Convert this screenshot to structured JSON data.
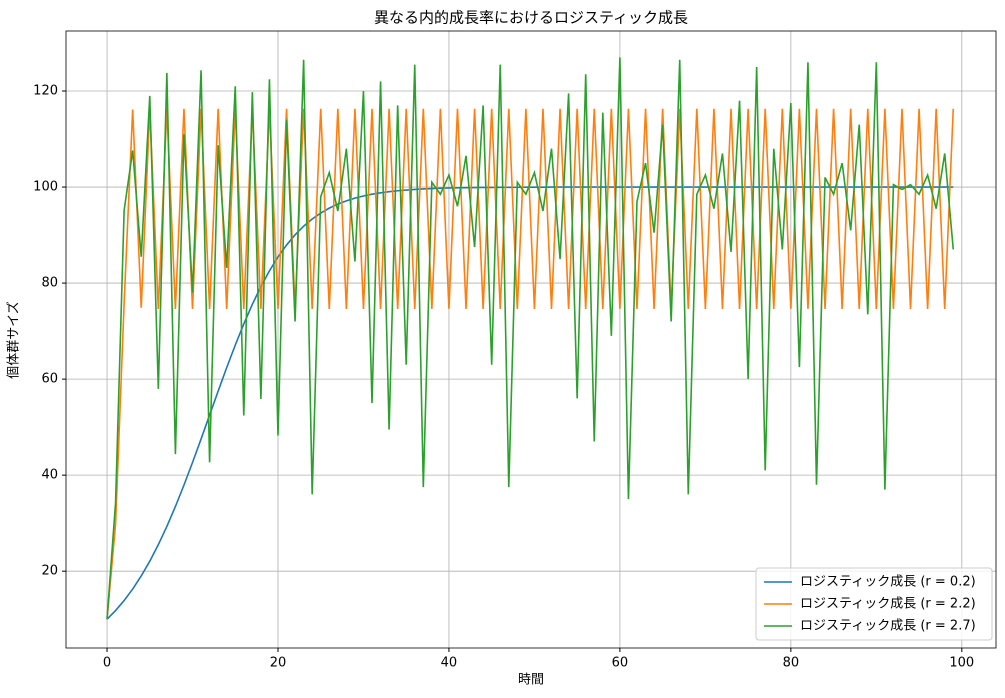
{
  "chart_data": {
    "type": "line",
    "title": "異なる内的成長率におけるロジスティック成長",
    "xlabel": "時間",
    "ylabel": "個体群サイズ",
    "x": [
      0,
      1,
      2,
      3,
      4,
      5,
      6,
      7,
      8,
      9,
      10,
      11,
      12,
      13,
      14,
      15,
      16,
      17,
      18,
      19,
      20,
      21,
      22,
      23,
      24,
      25,
      26,
      27,
      28,
      29,
      30,
      31,
      32,
      33,
      34,
      35,
      36,
      37,
      38,
      39,
      40,
      41,
      42,
      43,
      44,
      45,
      46,
      47,
      48,
      49,
      50,
      51,
      52,
      53,
      54,
      55,
      56,
      57,
      58,
      59,
      60,
      61,
      62,
      63,
      64,
      65,
      66,
      67,
      68,
      69,
      70,
      71,
      72,
      73,
      74,
      75,
      76,
      77,
      78,
      79,
      80,
      81,
      82,
      83,
      84,
      85,
      86,
      87,
      88,
      89,
      90,
      91,
      92,
      93,
      94,
      95,
      96,
      97,
      98,
      99
    ],
    "series": [
      {
        "name": "ロジスティック成長 (r = 0.2)",
        "color": "#1f77b4",
        "values": [
          10,
          11.8,
          13.88,
          16.27,
          19.0,
          22.08,
          25.52,
          29.32,
          33.47,
          37.92,
          42.63,
          47.52,
          52.51,
          57.5,
          62.39,
          67.08,
          71.5,
          75.58,
          79.27,
          82.55,
          85.44,
          87.92,
          90.05,
          91.84,
          93.34,
          94.58,
          95.61,
          96.45,
          97.13,
          97.69,
          98.14,
          98.51,
          98.8,
          99.04,
          99.23,
          99.38,
          99.5,
          99.6,
          99.68,
          99.75,
          99.8,
          99.84,
          99.87,
          99.89,
          99.91,
          99.93,
          99.94,
          99.95,
          99.96,
          99.97,
          99.98,
          99.98,
          99.99,
          99.99,
          99.99,
          99.99,
          100,
          100,
          100,
          100,
          100,
          100,
          100,
          100,
          100,
          100,
          100,
          100,
          100,
          100,
          100,
          100,
          100,
          100,
          100,
          100,
          100,
          100,
          100,
          100,
          100,
          100,
          100,
          100,
          100,
          100,
          100,
          100,
          100,
          100,
          100,
          100,
          100,
          100,
          100,
          100,
          100,
          100,
          100,
          100
        ]
      },
      {
        "name": "ロジスティック成長 (r = 2.2)",
        "color": "#ff7f0e",
        "values": [
          10,
          29.8,
          75.82,
          116.15,
          74.88,
          116.26,
          74.62,
          116.29,
          74.62,
          116.29,
          74.62,
          116.29,
          74.62,
          116.29,
          74.62,
          116.29,
          74.62,
          116.29,
          74.62,
          116.29,
          74.62,
          116.29,
          74.62,
          116.29,
          74.62,
          116.29,
          74.62,
          116.29,
          74.62,
          116.29,
          74.62,
          116.29,
          74.62,
          116.29,
          74.62,
          116.29,
          74.62,
          116.29,
          74.62,
          116.29,
          74.62,
          116.29,
          74.62,
          116.29,
          74.62,
          116.29,
          74.62,
          116.29,
          74.62,
          116.29,
          74.62,
          116.29,
          74.62,
          116.29,
          74.62,
          116.29,
          74.62,
          116.29,
          74.62,
          116.29,
          74.62,
          116.29,
          74.62,
          116.29,
          74.62,
          116.29,
          74.62,
          116.29,
          74.62,
          116.29,
          74.62,
          116.29,
          74.62,
          116.29,
          74.62,
          116.29,
          74.62,
          116.29,
          74.62,
          116.29,
          74.62,
          116.29,
          74.62,
          116.29,
          74.62,
          116.29,
          74.62,
          116.29,
          74.62,
          116.29,
          74.62,
          116.29,
          74.62,
          116.29,
          74.62,
          116.29,
          74.62,
          116.29,
          74.62,
          116.29
        ]
      },
      {
        "name": "ロジスティック成長 (r = 2.7)",
        "color": "#2ca02c",
        "values": [
          10,
          34.3,
          95.14,
          107.62,
          85.48,
          118.99,
          57.98,
          123.76,
          44.37,
          111.01,
          78.01,
          124.33,
          42.66,
          108.71,
          83.14,
          120.99,
          52.42,
          119.76,
          55.87,
          122.44,
          48.26,
          114,
          72,
          126.5,
          36,
          98,
          103,
          95,
          108,
          84.5,
          120,
          55,
          122,
          49.5,
          117,
          63,
          125.5,
          37.5,
          101,
          98.5,
          102.5,
          96,
          106.5,
          87.5,
          117,
          63,
          125.5,
          37.5,
          101,
          98.5,
          103,
          95,
          108,
          85,
          119.5,
          56,
          123.5,
          47,
          115.5,
          69,
          127,
          35,
          97,
          105,
          90.5,
          113,
          72,
          126.5,
          36,
          98.5,
          102.5,
          95.5,
          107,
          86.5,
          118,
          60,
          125,
          41,
          108,
          87,
          117.5,
          62.5,
          126,
          38,
          102,
          98.5,
          105,
          91,
          113,
          73.5,
          126,
          37,
          100.5,
          99.5,
          100.5,
          98.5,
          102.5,
          95.5,
          107,
          87
        ]
      }
    ],
    "xlim": [
      -4.8,
      104
    ],
    "ylim": [
      4,
      132.5
    ],
    "xticks": [
      0,
      20,
      40,
      60,
      80,
      100
    ],
    "yticks": [
      20,
      40,
      60,
      80,
      100,
      120
    ],
    "grid": true,
    "legend": "lower right"
  }
}
